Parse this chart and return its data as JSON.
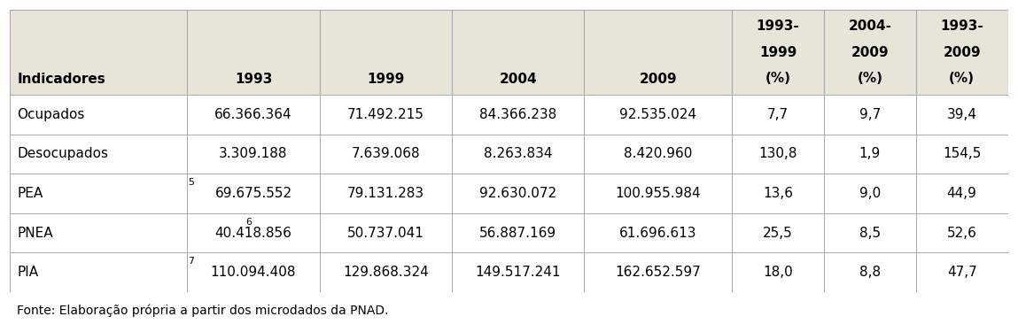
{
  "col_headers": [
    "Indicadores",
    "1993",
    "1999",
    "2004",
    "2009",
    "1993-\n1999\n(%)",
    "2004-\n2009\n(%)",
    "1993-\n2009\n(%)"
  ],
  "rows": [
    [
      "Ocupados",
      "66.366.364",
      "71.492.215",
      "84.366.238",
      "92.535.024",
      "7,7",
      "9,7",
      "39,4"
    ],
    [
      "Desocupados",
      "3.309.188",
      "7.639.068",
      "8.263.834",
      "8.420.960",
      "130,8",
      "1,9",
      "154,5"
    ],
    [
      "PEA$^5$",
      "69.675.552",
      "79.131.283",
      "92.630.072",
      "100.955.984",
      "13,6",
      "9,0",
      "44,9"
    ],
    [
      "PNEA$^6$",
      "40.418.856",
      "50.737.041",
      "56.887.169",
      "61.696.613",
      "25,5",
      "8,5",
      "52,6"
    ],
    [
      "PIA$^7$",
      "110.094.408",
      "129.868.324",
      "149.517.241",
      "162.652.597",
      "18,0",
      "8,8",
      "47,7"
    ]
  ],
  "pea_label": "PEA",
  "pea_sup": "5",
  "pnea_label": "PNEA",
  "pnea_sup": "6",
  "pia_label": "PIA",
  "pia_sup": "7",
  "footer": "Fonte: Elaboração própria a partir dos microdados da PNAD.",
  "header_bg": "#e8e4d8",
  "data_bg": "#ffffff",
  "border_color": "#aaaaaa",
  "text_color": "#000000",
  "figsize": [
    11.49,
    3.75
  ],
  "dpi": 100,
  "font_size": 11.0,
  "footer_font_size": 10.0
}
